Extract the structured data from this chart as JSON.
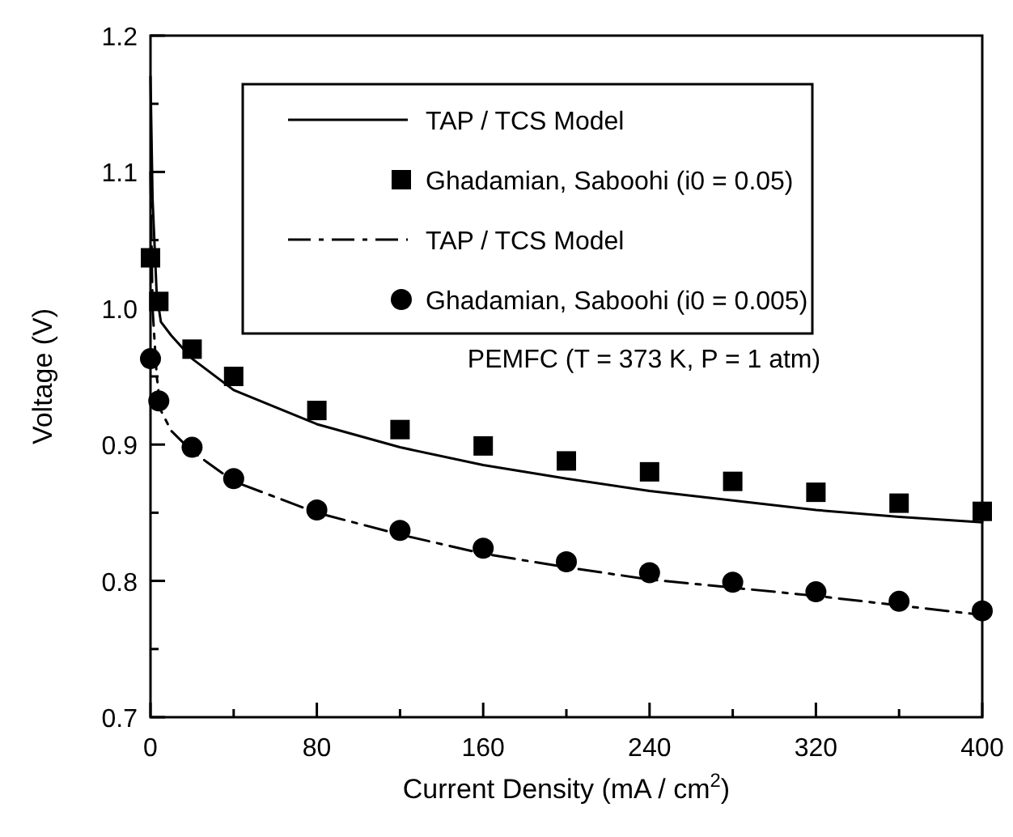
{
  "chart_data": {
    "type": "line",
    "xlabel": "Current Density (mA / cm$^{2}$)",
    "ylabel": "Voltage (V)",
    "legend": "top",
    "grid": false,
    "xlim": [
      0,
      400
    ],
    "ylim": [
      0.7,
      1.2
    ],
    "xticks": [
      0,
      {
        "value": 40,
        "label": null
      },
      80,
      {
        "value": 120,
        "label": null
      },
      160,
      {
        "value": 200,
        "label": null
      },
      240,
      {
        "value": 280,
        "label": null
      },
      320,
      {
        "value": 360,
        "label": null
      },
      400
    ],
    "yticks": [
      0.7,
      {
        "value": 0.75,
        "label": null
      },
      0.8,
      {
        "value": 0.85,
        "label": null
      },
      0.9,
      {
        "value": 0.95,
        "label": null
      },
      {
        "value": 1.0,
        "label": "1.0"
      },
      {
        "value": 1.05,
        "label": null
      },
      1.1,
      {
        "value": 1.15,
        "label": null
      },
      1.2
    ],
    "annotations": [
      "PEMFC (T = 373 K, P = 1 atm)"
    ],
    "series": [
      {
        "name": "TAP / TCS Model",
        "line_style": "solid",
        "marker": "none",
        "color": "#000000",
        "x": [
          0,
          1,
          3,
          5,
          10,
          20,
          40,
          80,
          120,
          160,
          200,
          240,
          280,
          320,
          360,
          400
        ],
        "values": [
          1.17,
          1.08,
          1.01,
          0.99,
          0.98,
          0.963,
          0.94,
          0.915,
          0.898,
          0.885,
          0.875,
          0.866,
          0.859,
          0.852,
          0.847,
          0.843
        ]
      },
      {
        "name": "Ghadamian, Saboohi (i0 = 0.05)",
        "type": "scatter",
        "marker": "square",
        "color": "#000000",
        "x": [
          0,
          4,
          20,
          40,
          80,
          120,
          160,
          200,
          240,
          280,
          320,
          360,
          400
        ],
        "values": [
          1.037,
          1.005,
          0.97,
          0.95,
          0.925,
          0.911,
          0.899,
          0.888,
          0.88,
          0.873,
          0.865,
          0.857,
          0.851
        ]
      },
      {
        "name": "TAP / TCS Model",
        "line_style": "dashed",
        "marker": "none",
        "color": "#000000",
        "x": [
          0,
          1,
          3,
          5,
          10,
          20,
          40,
          80,
          120,
          160,
          200,
          240,
          280,
          320,
          360,
          400
        ],
        "values": [
          1.1,
          1.0,
          0.95,
          0.925,
          0.91,
          0.895,
          0.873,
          0.85,
          0.834,
          0.82,
          0.81,
          0.801,
          0.795,
          0.789,
          0.782,
          0.775
        ]
      },
      {
        "name": "Ghadamian, Saboohi (i0 = 0.005)",
        "type": "scatter",
        "marker": "circle",
        "color": "#000000",
        "x": [
          0,
          4,
          20,
          40,
          80,
          120,
          160,
          200,
          240,
          280,
          320,
          360,
          400
        ],
        "values": [
          0.963,
          0.932,
          0.898,
          0.875,
          0.852,
          0.837,
          0.824,
          0.814,
          0.806,
          0.799,
          0.792,
          0.785,
          0.778
        ]
      }
    ]
  }
}
